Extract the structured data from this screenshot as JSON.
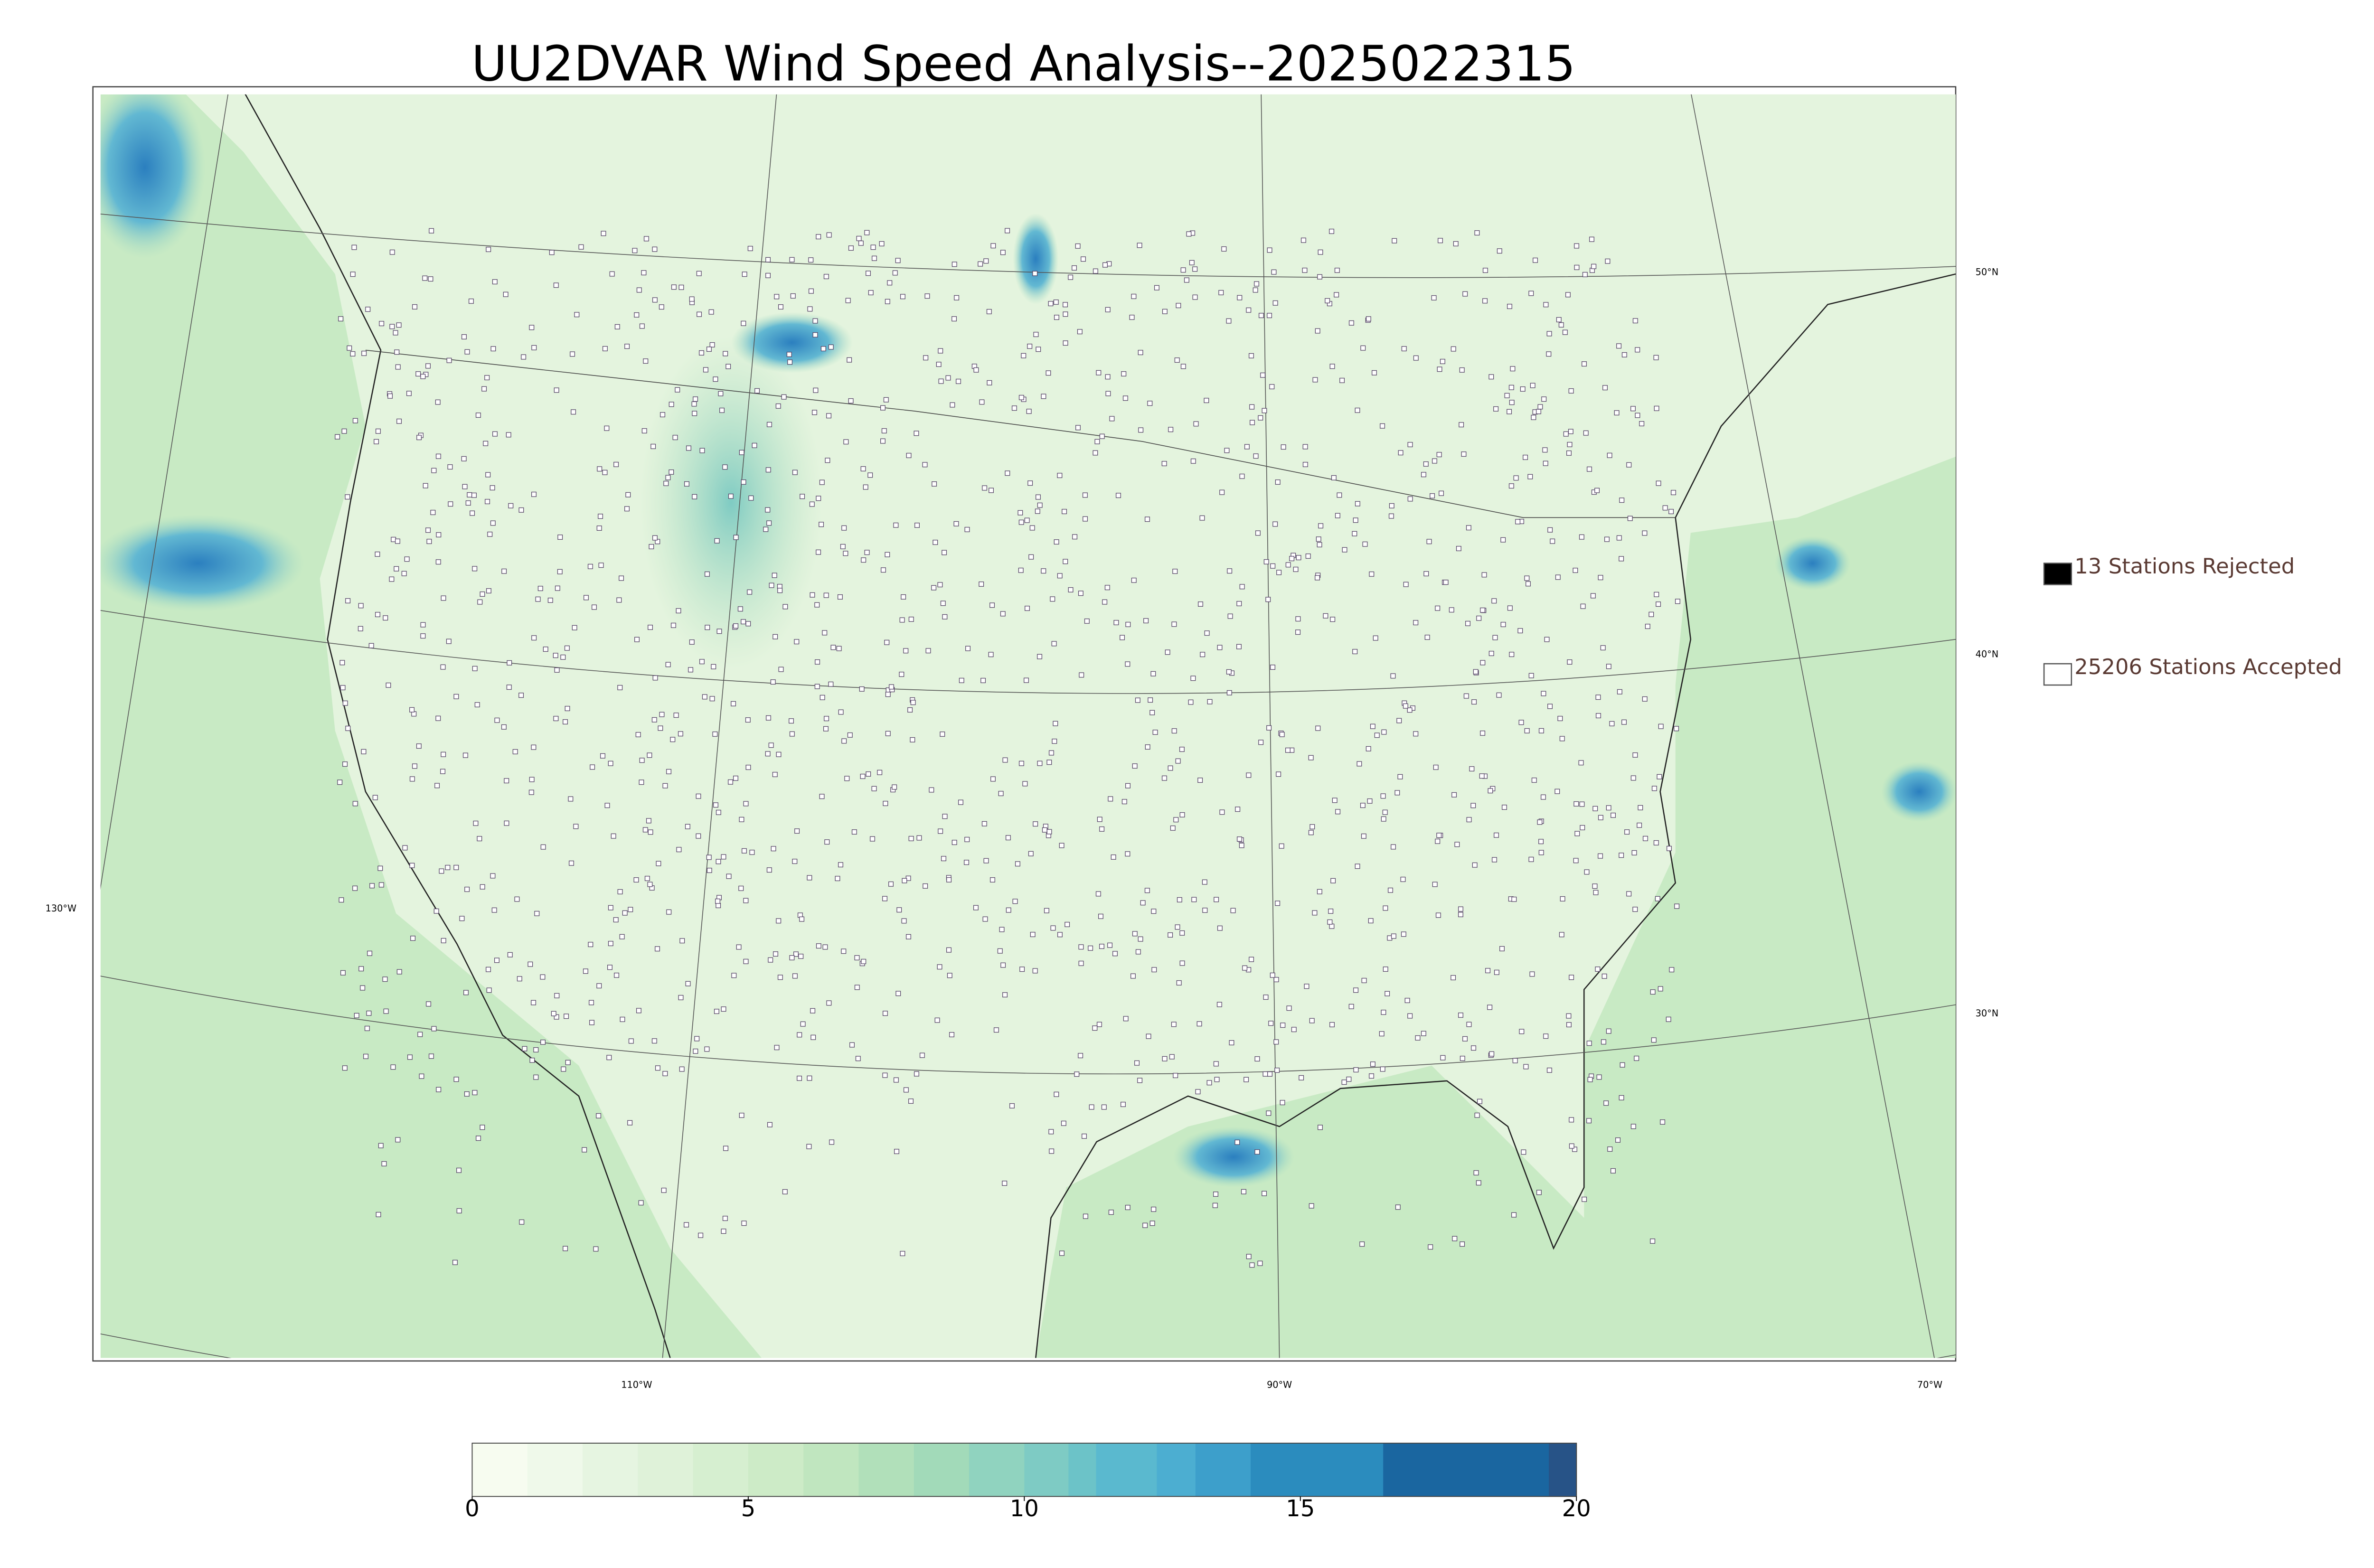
{
  "title": "UU2DVAR Wind Speed Analysis--2025022315",
  "legend": [
    {
      "label": "13 Stations Rejected",
      "color": "#000000"
    },
    {
      "label": "25206 Stations Accepted",
      "color": "#ffffff"
    }
  ],
  "lat_labels": [
    "50°N",
    "40°N",
    "30°N"
  ],
  "lon_labels": [
    "130°W",
    "110°W",
    "90°W",
    "70°W"
  ],
  "colorbar": {
    "lim": [
      0,
      20
    ],
    "ticks": [
      0,
      5,
      10,
      15,
      20
    ],
    "levels": [
      0,
      1,
      2,
      3,
      4,
      5,
      6,
      7,
      8,
      9,
      10,
      10.8,
      11.3,
      12.4,
      13.1,
      14.1,
      16.5,
      19.5,
      20
    ],
    "colors": [
      "#f7fcf0",
      "#eff9ea",
      "#e6f5e1",
      "#dff2d9",
      "#d6efd0",
      "#cdebc7",
      "#c0e6bf",
      "#b1e0ba",
      "#a2dab9",
      "#90d3bf",
      "#7ecbc4",
      "#6cc3c8",
      "#5ab9cf",
      "#4caed1",
      "#3d9fcb",
      "#2b8cbe",
      "#1a66a0",
      "#275387"
    ]
  }
}
